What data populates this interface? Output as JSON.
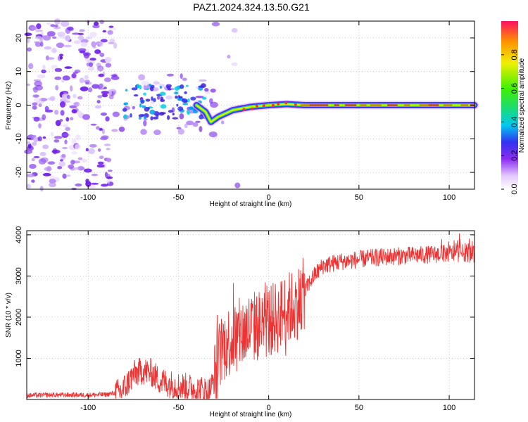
{
  "figure": {
    "title": "PAZ1.2024.324.13.50.G21"
  },
  "chart_data": [
    {
      "type": "heatmap",
      "xlabel": "Height of straight line (km)",
      "ylabel": "Frequency (Hz)",
      "xlim": [
        -134,
        114
      ],
      "ylim": [
        -25,
        25
      ],
      "xticks": [
        -100,
        -50,
        0,
        50,
        100
      ],
      "yticks": [
        -20,
        -10,
        0,
        10,
        20
      ],
      "colorbar": {
        "label": "Normalized spectral amplitude",
        "range": [
          0,
          1
        ],
        "ticks": [
          0.0,
          0.2,
          0.4,
          0.6,
          0.8
        ],
        "colormap": "white-purple-blue-cyan-green-yellow-red"
      },
      "ridge": {
        "description_points_x": [
          -80,
          -70,
          -60,
          -50,
          -40,
          -35,
          -32,
          -28,
          -20,
          -10,
          0,
          10,
          20,
          50,
          100,
          114
        ],
        "frequency_hz": [
          -2.0,
          -1.0,
          0.0,
          1.0,
          0.0,
          -2.0,
          -5.0,
          -3.5,
          -1.5,
          -0.5,
          0.0,
          0.3,
          0.0,
          0.0,
          0.0,
          0.0
        ]
      },
      "grid": true
    },
    {
      "type": "line",
      "xlabel": "Height of straight line (km)",
      "ylabel": "SNR (10 * v/v)",
      "xlim": [
        -134,
        114
      ],
      "ylim": [
        0,
        4100
      ],
      "xticks": [
        -100,
        -50,
        0,
        50,
        100
      ],
      "yticks": [
        1000,
        2000,
        3000,
        4000
      ],
      "series": [
        {
          "color": "#ee3333",
          "x": [
            -134,
            -120,
            -100,
            -90,
            -82,
            -78,
            -75,
            -70,
            -65,
            -60,
            -55,
            -50,
            -45,
            -40,
            -36,
            -33,
            -30,
            -27,
            -25,
            -20,
            -15,
            -10,
            -5,
            0,
            5,
            10,
            15,
            20,
            22,
            25,
            30,
            40,
            50,
            60,
            70,
            80,
            90,
            100,
            110,
            114
          ],
          "y": [
            100,
            110,
            110,
            120,
            180,
            400,
            600,
            700,
            650,
            450,
            380,
            330,
            300,
            250,
            230,
            200,
            500,
            1100,
            1300,
            1500,
            1600,
            1750,
            1800,
            1900,
            2000,
            2200,
            2300,
            2600,
            2800,
            3000,
            3250,
            3350,
            3400,
            3450,
            3480,
            3500,
            3520,
            3550,
            3560,
            3500
          ]
        }
      ],
      "grid": true
    }
  ]
}
